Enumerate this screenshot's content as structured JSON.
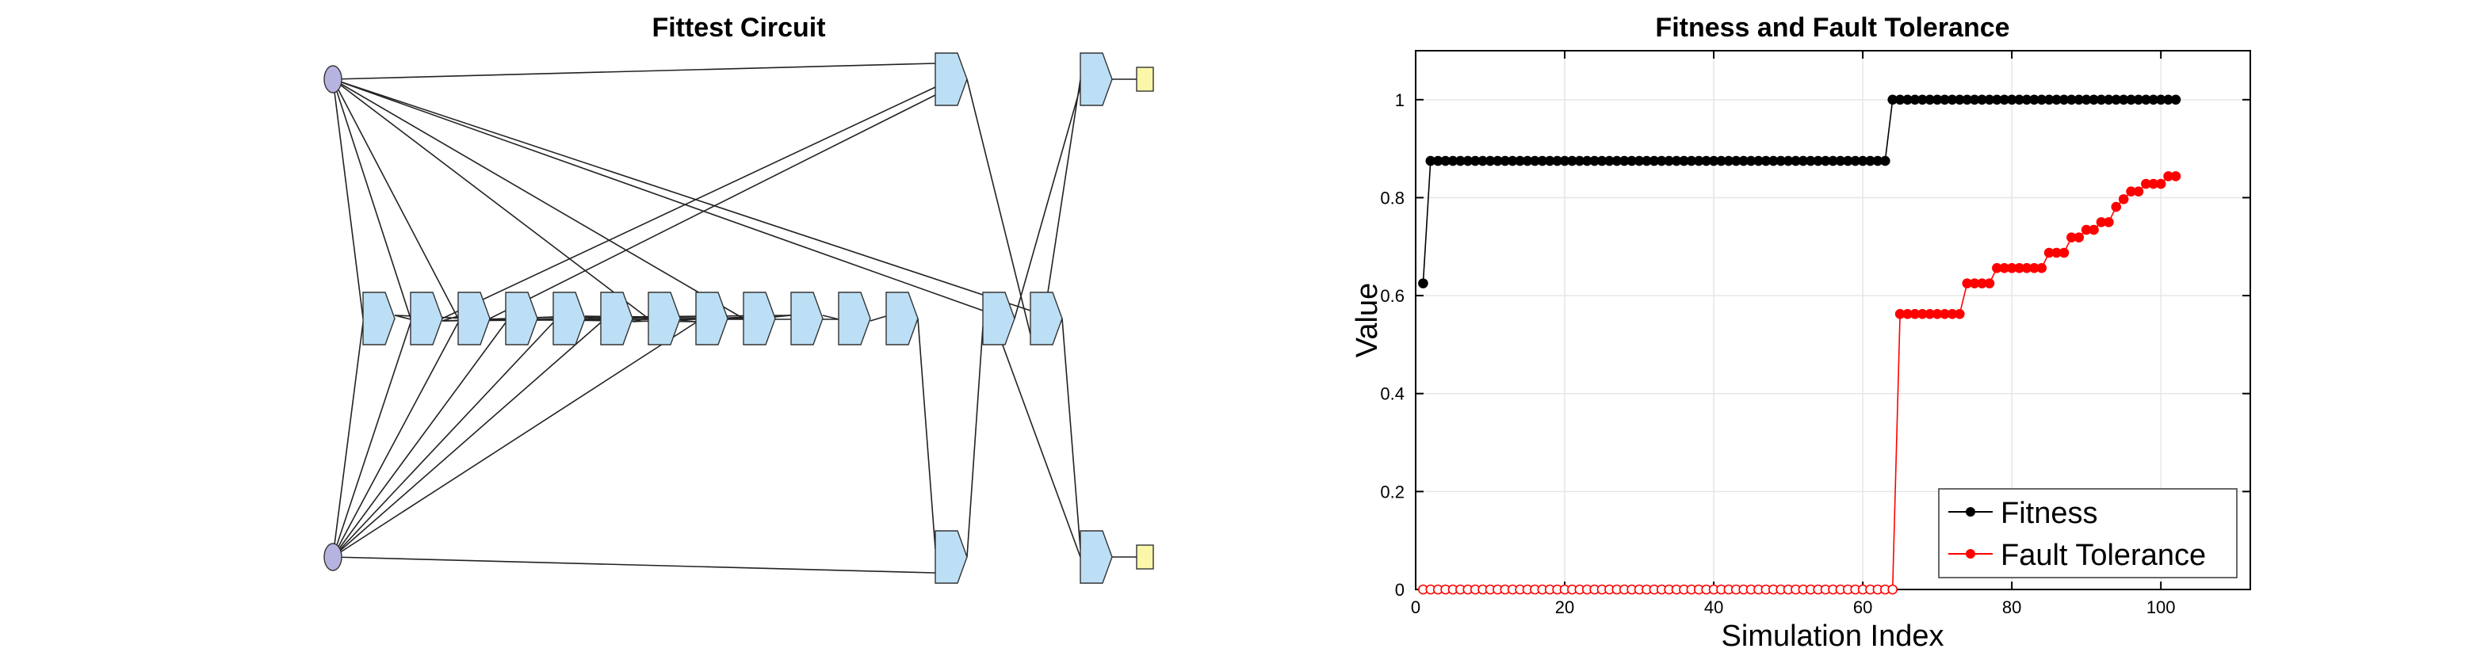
{
  "circuit": {
    "title": "Fittest Circuit"
  },
  "chart_data": {
    "type": "line",
    "title": "Fitness and Fault Tolerance",
    "xlabel": "Simulation Index",
    "ylabel": "Value",
    "xlim": [
      0,
      112
    ],
    "ylim": [
      0,
      1.1
    ],
    "xticks": [
      0,
      20,
      40,
      60,
      80,
      100
    ],
    "yticks": [
      0,
      0.2,
      0.4,
      0.6,
      0.8,
      1
    ],
    "grid": true,
    "legend_position": "bottom-right",
    "x_range": [
      1,
      102
    ],
    "series": [
      {
        "name": "Fitness",
        "color": "#000000",
        "segments": [
          {
            "from": 1,
            "to": 1,
            "value": 0.625
          },
          {
            "from": 2,
            "to": 63,
            "value": 0.875
          },
          {
            "from": 64,
            "to": 102,
            "value": 1.0
          }
        ]
      },
      {
        "name": "Fault Tolerance",
        "color": "#ff0000",
        "segments": [
          {
            "from": 1,
            "to": 64,
            "value": 0.0,
            "marker": "open"
          },
          {
            "from": 65,
            "to": 73,
            "value": 0.5625
          },
          {
            "from": 74,
            "to": 77,
            "value": 0.625
          },
          {
            "from": 78,
            "to": 84,
            "value": 0.65625
          },
          {
            "from": 85,
            "to": 87,
            "value": 0.6875
          },
          {
            "from": 88,
            "to": 89,
            "value": 0.71875
          },
          {
            "from": 90,
            "to": 91,
            "value": 0.734375
          },
          {
            "from": 92,
            "to": 93,
            "value": 0.75
          },
          {
            "from": 94,
            "to": 94,
            "value": 0.78125
          },
          {
            "from": 95,
            "to": 95,
            "value": 0.796875
          },
          {
            "from": 96,
            "to": 97,
            "value": 0.8125
          },
          {
            "from": 98,
            "to": 100,
            "value": 0.828125
          },
          {
            "from": 101,
            "to": 102,
            "value": 0.84375
          }
        ]
      }
    ]
  }
}
